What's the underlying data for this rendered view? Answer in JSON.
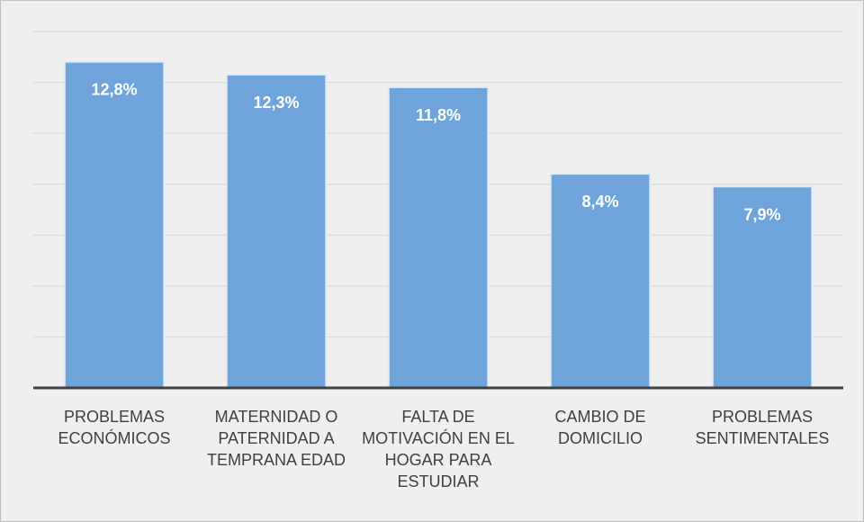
{
  "chart_data": {
    "type": "bar",
    "categories": [
      "PROBLEMAS ECONÓMICOS",
      "MATERNIDAD O PATERNIDAD A TEMPRANA EDAD",
      "FALTA DE MOTIVACIÓN EN EL HOGAR PARA ESTUDIAR",
      "CAMBIO DE DOMICILIO",
      "PROBLEMAS SENTIMENTALES"
    ],
    "values": [
      12.8,
      12.3,
      11.8,
      8.4,
      7.9
    ],
    "value_labels": [
      "12,8%",
      "12,3%",
      "11,8%",
      "8,4%",
      "7,9%"
    ],
    "color": "#6fa4db",
    "ylim": [
      0,
      14
    ],
    "yticks": [
      0,
      2,
      4,
      6,
      8,
      10,
      12,
      14
    ],
    "grid": true
  }
}
